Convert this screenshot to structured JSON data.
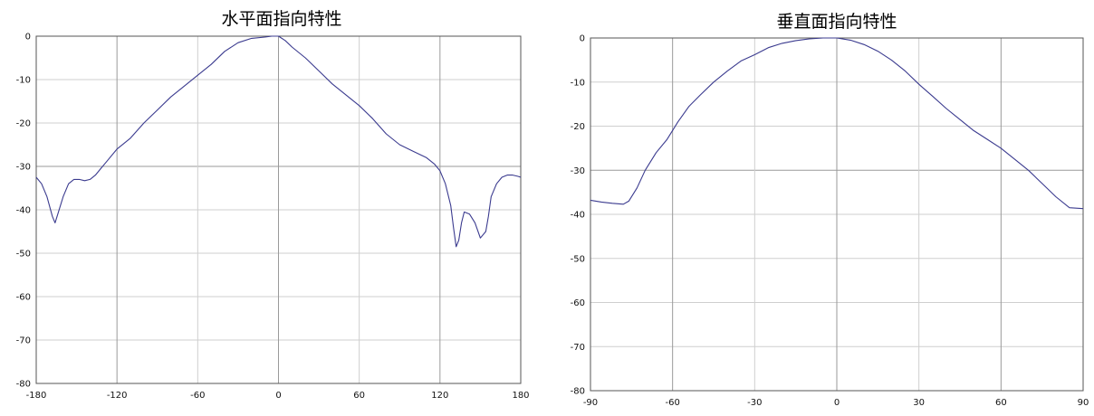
{
  "colors": {
    "line": "#3b3b8f",
    "grid_major": "#9a9a9a",
    "grid_minor": "#cfcfcf",
    "frame": "#555555"
  },
  "chart_data": [
    {
      "type": "line",
      "title": "水平面指向特性",
      "xlabel": "",
      "ylabel": "",
      "xlim": [
        -180,
        180
      ],
      "ylim": [
        -80,
        0
      ],
      "xticks": [
        -180,
        -120,
        -60,
        0,
        60,
        120,
        180
      ],
      "yticks": [
        0,
        -10,
        -20,
        -30,
        -40,
        -50,
        -60,
        -70,
        -80
      ],
      "xtick_labels": [
        "-180",
        "-120",
        "-60",
        "0",
        "60",
        "120",
        "180"
      ],
      "ytick_labels": [
        "0",
        "-10",
        "-20",
        "-30",
        "-40",
        "-50",
        "-60",
        "-70",
        "-80"
      ],
      "grid": true,
      "series": [
        {
          "x": [
            -180,
            -176,
            -172,
            -168,
            -166,
            -164,
            -160,
            -156,
            -152,
            -148,
            -144,
            -140,
            -136,
            -132,
            -128,
            -120,
            -110,
            -100,
            -90,
            -80,
            -70,
            -60,
            -50,
            -40,
            -30,
            -20,
            -10,
            -5,
            0,
            5,
            10,
            20,
            30,
            40,
            50,
            60,
            70,
            80,
            90,
            100,
            110,
            116,
            120,
            124,
            128,
            130,
            132,
            134,
            136,
            138,
            142,
            146,
            150,
            154,
            156,
            158,
            162,
            166,
            170,
            174,
            178,
            180
          ],
          "y": [
            -32.5,
            -34,
            -37,
            -41.5,
            -43,
            -41,
            -37,
            -34,
            -33,
            -33,
            -33.3,
            -33,
            -32,
            -30.5,
            -29,
            -26,
            -23.5,
            -20,
            -17,
            -14,
            -11.5,
            -9,
            -6.5,
            -3.5,
            -1.5,
            -0.5,
            -0.2,
            0,
            0,
            -1,
            -2.5,
            -5,
            -8,
            -11,
            -13.5,
            -16,
            -19,
            -22.5,
            -25,
            -26.5,
            -28,
            -29.5,
            -31,
            -34,
            -39,
            -44,
            -48.5,
            -47,
            -43,
            -40.5,
            -41,
            -43,
            -46.5,
            -45,
            -41.5,
            -37,
            -34,
            -32.5,
            -32,
            -32,
            -32.3,
            -32.5
          ]
        }
      ]
    },
    {
      "type": "line",
      "title": "垂直面指向特性",
      "xlabel": "",
      "ylabel": "",
      "xlim": [
        -90,
        90
      ],
      "ylim": [
        -80,
        0
      ],
      "xticks": [
        -90,
        -60,
        -30,
        0,
        30,
        60,
        90
      ],
      "yticks": [
        0,
        -10,
        -20,
        -30,
        -40,
        -50,
        -60,
        -70,
        -80
      ],
      "xtick_labels": [
        "-90",
        "-60",
        "-30",
        "0",
        "30",
        "60",
        "90"
      ],
      "ytick_labels": [
        "0",
        "-10",
        "-20",
        "-30",
        "-40",
        "-50",
        "-60",
        "-70",
        "-80"
      ],
      "grid": true,
      "series": [
        {
          "x": [
            -90,
            -86,
            -82,
            -78,
            -76,
            -73,
            -70,
            -66,
            -62,
            -58,
            -54,
            -50,
            -45,
            -40,
            -35,
            -30,
            -25,
            -20,
            -15,
            -10,
            -5,
            0,
            5,
            10,
            15,
            20,
            25,
            30,
            35,
            40,
            45,
            50,
            55,
            60,
            65,
            70,
            75,
            80,
            85,
            90
          ],
          "y": [
            -36.8,
            -37.2,
            -37.5,
            -37.7,
            -37,
            -34,
            -30,
            -26,
            -23,
            -19,
            -15.5,
            -13,
            -10,
            -7.5,
            -5.2,
            -3.8,
            -2.2,
            -1.2,
            -0.6,
            -0.2,
            0,
            0,
            -0.5,
            -1.5,
            -3,
            -5,
            -7.5,
            -10.5,
            -13.2,
            -16,
            -18.5,
            -21,
            -23,
            -25,
            -27.5,
            -30,
            -33,
            -36,
            -38.5,
            -38.7
          ]
        }
      ]
    }
  ]
}
